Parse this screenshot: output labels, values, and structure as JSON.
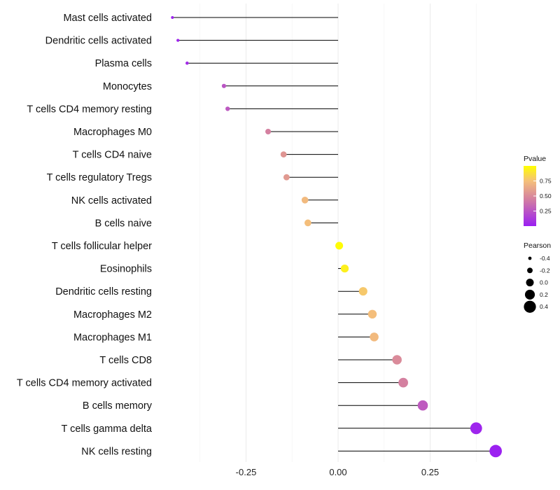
{
  "chart_data": {
    "type": "lollipop",
    "title": "",
    "xlabel": "",
    "ylabel": "",
    "xlim": [
      -0.45,
      0.46
    ],
    "xticks": [
      -0.25,
      0.0,
      0.25
    ],
    "xtick_labels": [
      "-0.25",
      "0.00",
      "0.25"
    ],
    "grid": true,
    "categories": [
      "Mast cells activated",
      "Dendritic cells activated",
      "Plasma cells",
      "Monocytes",
      "T cells CD4 memory resting",
      "Macrophages M0",
      "T cells CD4 naive",
      "T cells regulatory  Tregs ",
      "NK cells activated",
      "B cells naive",
      "T cells follicular helper",
      "Eosinophils",
      "Dendritic cells resting",
      "Macrophages M2",
      "Macrophages M1",
      "T cells CD8",
      "T cells CD4 memory activated",
      "B cells memory",
      "T cells gamma delta",
      "NK cells resting"
    ],
    "pearson": [
      -0.45,
      -0.435,
      -0.41,
      -0.31,
      -0.3,
      -0.19,
      -0.148,
      -0.14,
      -0.09,
      -0.082,
      0.003,
      0.018,
      0.068,
      0.093,
      0.098,
      0.16,
      0.177,
      0.23,
      0.375,
      0.428
    ],
    "pvalue": [
      0.02,
      0.03,
      0.06,
      0.25,
      0.27,
      0.45,
      0.55,
      0.57,
      0.72,
      0.74,
      0.99,
      0.94,
      0.78,
      0.74,
      0.72,
      0.5,
      0.45,
      0.28,
      0.03,
      0.01
    ],
    "legend_pvalue": {
      "title": "Pvalue",
      "ticks": [
        0.25,
        0.5,
        0.75
      ],
      "tick_labels": [
        "0.25",
        "0.50",
        "0.75"
      ],
      "range": [
        0.0,
        1.0
      ],
      "colors": [
        "#9a1ff2",
        "#d480a0",
        "#f5c07a",
        "#ffff00"
      ]
    },
    "legend_pearson": {
      "title": "Pearson",
      "values": [
        -0.4,
        -0.2,
        0.0,
        0.2,
        0.4
      ],
      "labels": [
        "-0.4",
        "-0.2",
        "0.0",
        "0.2",
        "0.4"
      ]
    },
    "legend_placement": "right"
  }
}
